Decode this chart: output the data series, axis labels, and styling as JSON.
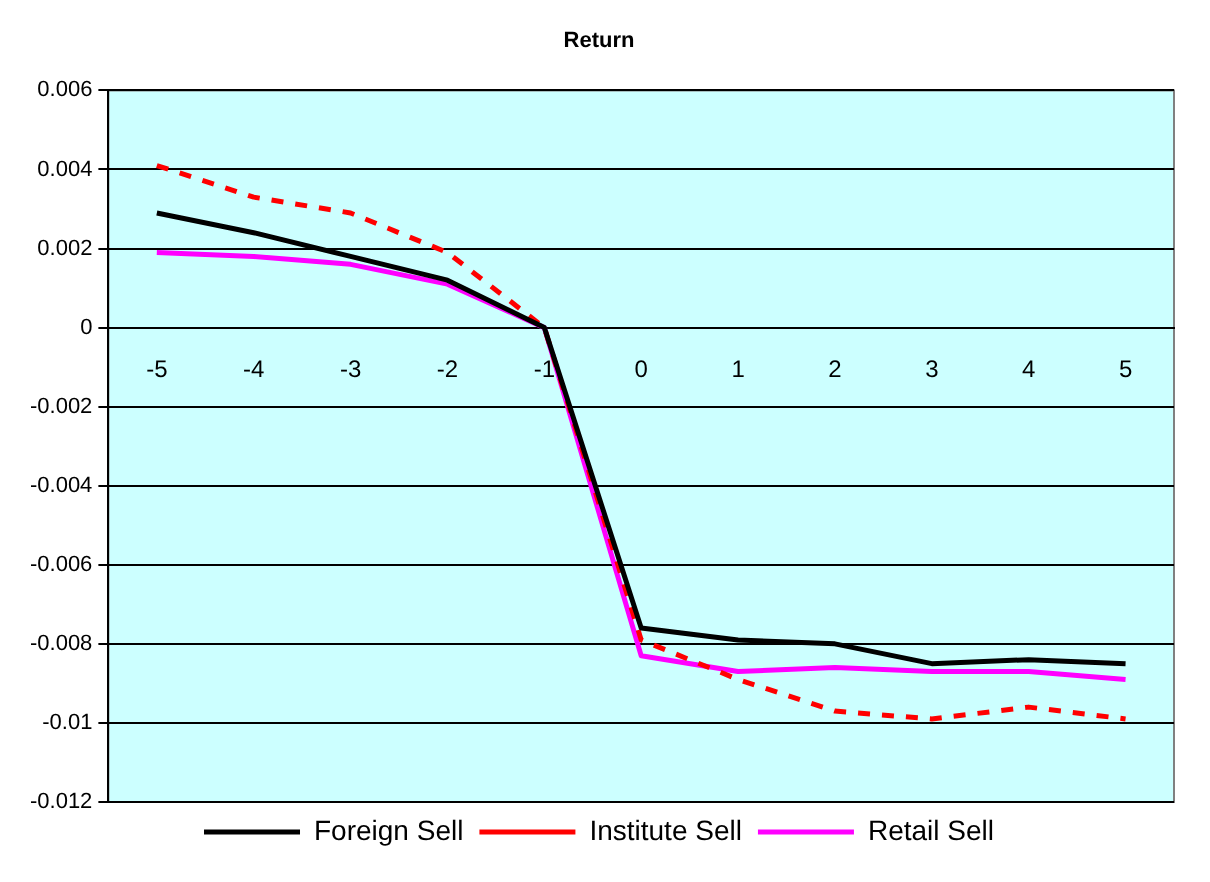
{
  "chart_data": {
    "type": "line",
    "title": "Return",
    "categories": [
      "-5",
      "-4",
      "-3",
      "-2",
      "-1",
      "0",
      "1",
      "2",
      "3",
      "4",
      "5"
    ],
    "series": [
      {
        "name": "Foreign Sell",
        "color": "#000000",
        "line_style": "solid",
        "values": [
          0.0029,
          0.0024,
          0.0018,
          0.0012,
          0,
          -0.0076,
          -0.0079,
          -0.008,
          -0.0085,
          -0.0084,
          -0.0085
        ]
      },
      {
        "name": "Institute Sell",
        "color": "#ff0000",
        "line_style": "dashed",
        "values": [
          0.0041,
          0.0033,
          0.0029,
          0.0019,
          0,
          -0.0079,
          -0.0089,
          -0.0097,
          -0.0099,
          -0.0096,
          -0.0099
        ]
      },
      {
        "name": "Retail Sell",
        "color": "#ff00ff",
        "line_style": "solid",
        "values": [
          0.0019,
          0.0018,
          0.0016,
          0.0011,
          0,
          -0.0083,
          -0.0087,
          -0.0086,
          -0.0087,
          -0.0087,
          -0.0089
        ]
      }
    ],
    "ylim": [
      -0.012,
      0.006
    ],
    "yticks": [
      -0.012,
      -0.01,
      -0.008,
      -0.006,
      -0.004,
      -0.002,
      0,
      0.002,
      0.004,
      0.006
    ],
    "grid": "y",
    "legend": "bottom",
    "marker": "none"
  }
}
